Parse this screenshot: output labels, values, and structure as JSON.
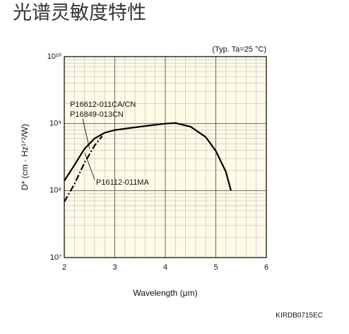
{
  "chart_data": {
    "type": "line",
    "title": "光谱灵敏度特性",
    "xlabel": "Wavelength (μm)",
    "ylabel": "D* (cm · Hz¹ᐟ²/W)",
    "annotation": "(Typ. Ta=25 °C)",
    "code": "KIRDB0715EC",
    "log_y": true,
    "grid": true,
    "background": "#fffbe6",
    "xlim": [
      2,
      6
    ],
    "xticks": [
      2,
      3,
      4,
      5,
      6
    ],
    "x_minor_per_major": 5,
    "ylim": [
      10000000,
      10000000000
    ],
    "yticks": [
      {
        "value": 10000000,
        "label": "10⁷"
      },
      {
        "value": 100000000,
        "label": "10⁸"
      },
      {
        "value": 1000000000,
        "label": "10⁹"
      },
      {
        "value": 10000000000,
        "label": "10¹⁰"
      }
    ],
    "series": [
      {
        "label_lines": [
          "P16612-011CA/CN",
          "P16849-013CN"
        ],
        "color": "#000000",
        "dash": "solid",
        "x": [
          2.0,
          2.2,
          2.4,
          2.6,
          2.8,
          3.0,
          3.5,
          4.0,
          4.2,
          4.5,
          4.8,
          5.0,
          5.2,
          5.3
        ],
        "values": [
          140000000,
          240000000,
          420000000,
          600000000,
          730000000,
          800000000,
          900000000,
          1000000000,
          1020000000,
          900000000,
          630000000,
          390000000,
          190000000,
          100000000
        ]
      },
      {
        "label_lines": [
          "P16112-011MA"
        ],
        "color": "#000000",
        "dash": "dashdot",
        "x": [
          2.0,
          2.2,
          2.4,
          2.6,
          2.75
        ],
        "values": [
          68000000,
          125000000,
          260000000,
          470000000,
          650000000
        ]
      }
    ]
  }
}
